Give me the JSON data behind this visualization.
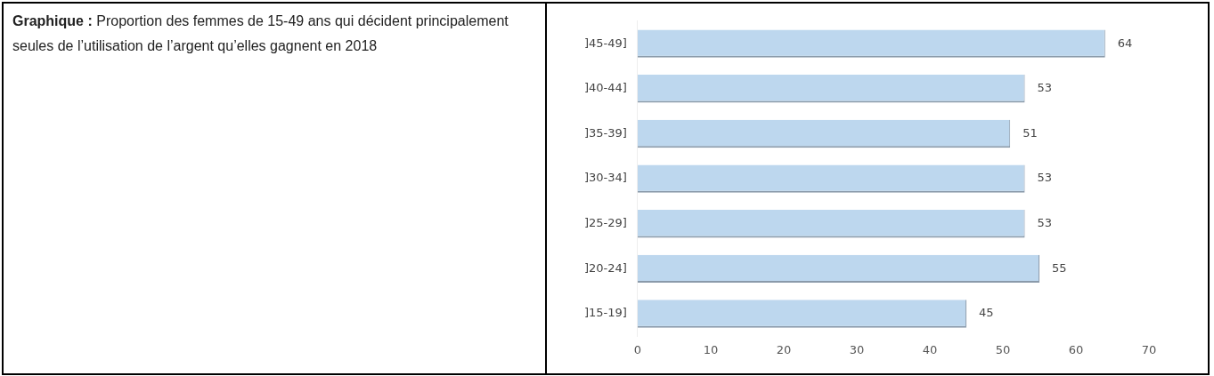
{
  "chart_data": {
    "type": "bar",
    "orientation": "horizontal",
    "title": "Graphique : Proportion des femmes de 15-49 ans qui décident principalement seules de l’utilisation de l’argent qu’elles gagnent en 2018",
    "categories": [
      "]45-49]",
      "]40-44]",
      "]35-39]",
      "]30-34]",
      "]25-29]",
      "]20-24]",
      "]15-19]"
    ],
    "values": [
      64,
      53,
      51,
      53,
      53,
      55,
      45
    ],
    "color": "#bdd7ee",
    "xlim": [
      0,
      70
    ],
    "xticks": [
      0,
      10,
      20,
      30,
      40,
      50,
      60,
      70
    ],
    "data_labels": true,
    "grid": false,
    "legend": false
  }
}
